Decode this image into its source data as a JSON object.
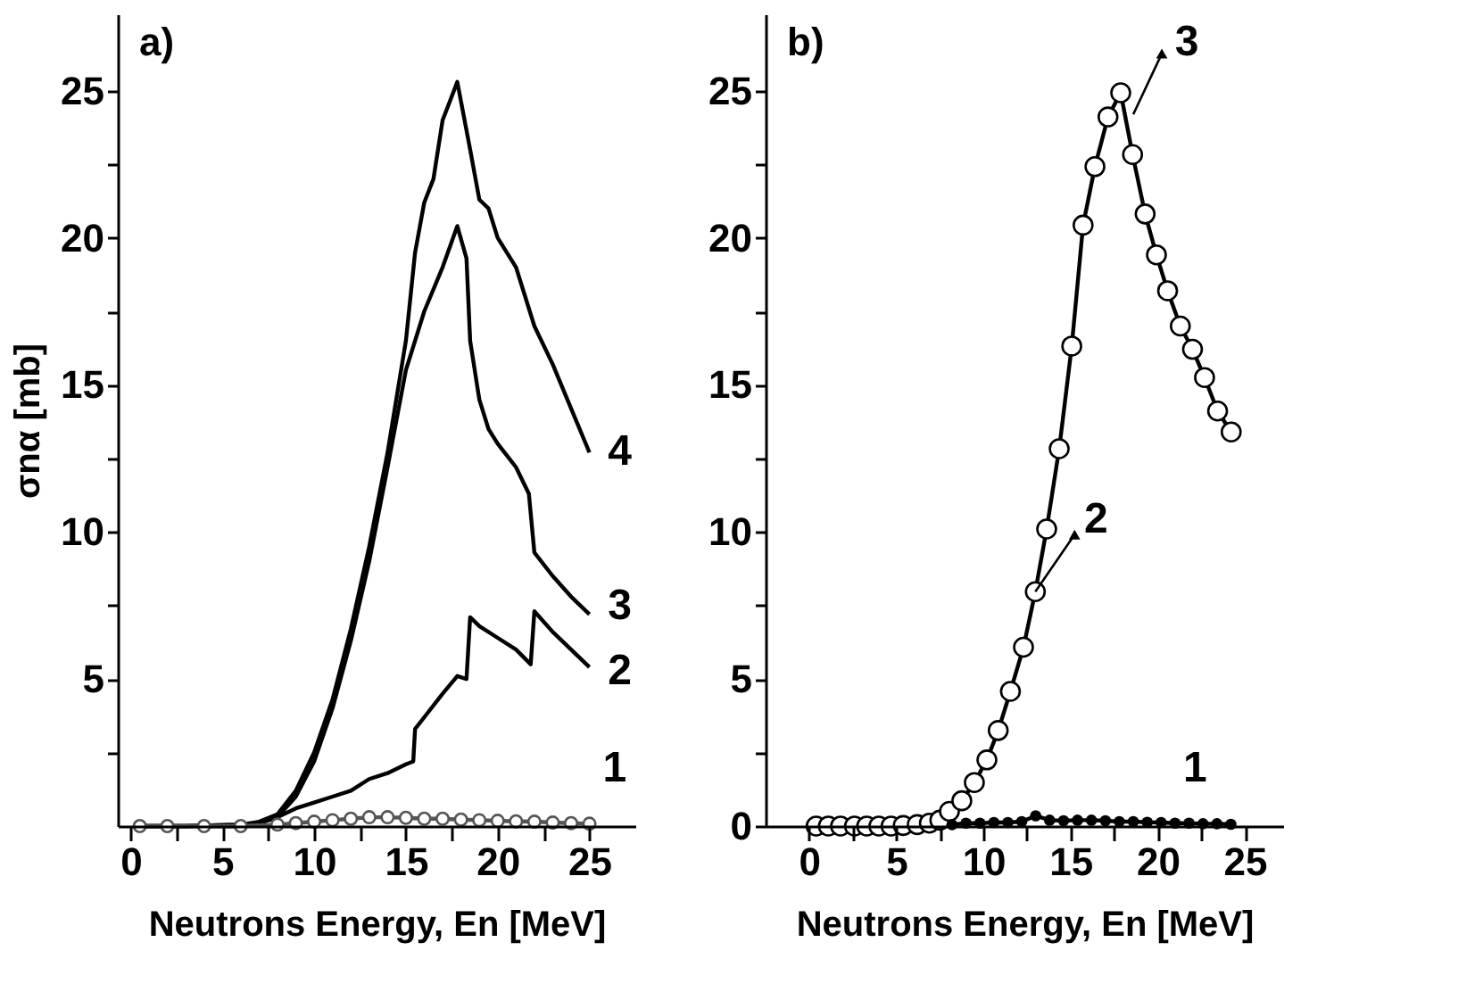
{
  "chart_data": [
    {
      "type": "line",
      "title": "a)",
      "xlabel": "Neutrons Energy, En [MeV]",
      "ylabel": "σnα [mb]",
      "xlim": [
        -0.7,
        27.5
      ],
      "xticks": [
        0,
        {
          "value": 2.5,
          "label": null
        },
        5,
        {
          "value": 7.5,
          "label": null
        },
        10,
        {
          "value": 12.5,
          "label": null
        },
        15,
        {
          "value": 17.5,
          "label": null
        },
        20,
        {
          "value": 22.5,
          "label": null
        },
        25
      ],
      "ylim": [
        0,
        27.6
      ],
      "yticks": [
        {
          "value": 2.5,
          "label": null
        },
        5,
        {
          "value": 7.5,
          "label": null
        },
        10,
        {
          "value": 12.5,
          "label": null
        },
        15,
        {
          "value": 17.5,
          "label": null
        },
        20,
        {
          "value": 22.5,
          "label": null
        },
        25
      ],
      "grid": false,
      "line_style": "solid",
      "series": [
        {
          "color": "#000000",
          "marker": "none",
          "x": [
            0.3,
            3,
            6,
            7,
            8,
            9,
            10,
            11,
            12,
            13,
            14,
            15,
            15.5,
            16,
            16.5,
            17,
            17.8,
            18.5,
            19,
            19.5,
            20,
            21,
            22,
            23,
            24,
            25
          ],
          "values": [
            0,
            0,
            0.05,
            0.15,
            0.4,
            1.2,
            2.5,
            4.3,
            6.7,
            9.5,
            12.7,
            16.5,
            19.5,
            21.2,
            22,
            24,
            25.3,
            23,
            21.3,
            21,
            20,
            19,
            17,
            15.7,
            14.2,
            12.7
          ]
        },
        {
          "color": "#000000",
          "marker": "none",
          "x": [
            0.3,
            3,
            6,
            7,
            8,
            9,
            10,
            11,
            12,
            13,
            14,
            15,
            16,
            17,
            17.8,
            18.3,
            18.5,
            19,
            19.5,
            20,
            21,
            21.7,
            22,
            23,
            24,
            25
          ],
          "values": [
            0,
            0,
            0.05,
            0.1,
            0.3,
            1,
            2.2,
            4,
            6.3,
            9,
            12.2,
            15.5,
            17.5,
            19,
            20.4,
            19.3,
            16.5,
            14.5,
            13.5,
            13,
            12.2,
            11.3,
            9.3,
            8.5,
            7.8,
            7.2
          ]
        },
        {
          "color": "#000000",
          "marker": "none",
          "x": [
            0.3,
            3,
            6,
            7,
            8,
            9,
            10,
            11,
            12,
            13,
            14,
            15,
            15.4,
            15.5,
            16,
            17,
            17.8,
            18.3,
            18.5,
            19,
            20,
            21,
            21.8,
            22,
            23,
            24,
            25
          ],
          "values": [
            0,
            0,
            0,
            0.1,
            0.3,
            0.6,
            0.8,
            1,
            1.2,
            1.6,
            1.8,
            2.1,
            2.2,
            3.3,
            3.7,
            4.5,
            5.1,
            5,
            7.1,
            6.8,
            6.4,
            6,
            5.5,
            7.3,
            6.6,
            6,
            5.4
          ]
        },
        {
          "color": "#555555",
          "marker": "circle",
          "x": [
            0.5,
            2,
            4,
            6,
            8,
            9,
            10,
            11,
            12,
            13,
            14,
            15,
            16,
            17,
            18,
            19,
            20,
            21,
            22,
            23,
            24,
            25
          ],
          "values": [
            0,
            0,
            0,
            0,
            0.05,
            0.1,
            0.15,
            0.2,
            0.25,
            0.3,
            0.3,
            0.28,
            0.25,
            0.25,
            0.22,
            0.2,
            0.18,
            0.16,
            0.15,
            0.12,
            0.1,
            0.08
          ]
        }
      ],
      "annotations": [
        "4",
        "3",
        "2",
        "1"
      ]
    },
    {
      "type": "line",
      "title": "b)",
      "xlabel": "Neutrons Energy, En [MeV]",
      "xlim": [
        -2.5,
        27.2
      ],
      "xticks": [
        0,
        {
          "value": 2.5,
          "label": null
        },
        5,
        {
          "value": 7.5,
          "label": null
        },
        10,
        {
          "value": 12.5,
          "label": null
        },
        15,
        {
          "value": 17.5,
          "label": null
        },
        20,
        {
          "value": 22.5,
          "label": null
        },
        25
      ],
      "ylim": [
        0,
        27.6
      ],
      "yticks": [
        0,
        {
          "value": 2.5,
          "label": null
        },
        5,
        {
          "value": 7.5,
          "label": null
        },
        10,
        {
          "value": 12.5,
          "label": null
        },
        15,
        {
          "value": 17.5,
          "label": null
        },
        20,
        {
          "value": 22.5,
          "label": null
        },
        25
      ],
      "grid": false,
      "line_style": "solid",
      "series": [
        {
          "color": "#000000",
          "marker": "circle",
          "x": [
            0.4,
            1.1,
            1.8,
            2.6,
            3.3,
            4.0,
            4.7,
            5.4,
            6.2,
            6.9,
            7.5,
            8.05,
            8.76,
            9.48,
            10.2,
            10.85,
            11.55,
            12.3,
            12.98,
            13.63,
            14.35,
            15.07,
            15.72,
            16.4,
            17.15,
            17.88,
            18.56,
            19.28,
            19.93,
            20.57,
            21.3,
            22.0,
            22.69,
            23.44,
            24.22
          ],
          "values": [
            0,
            0,
            0,
            0,
            0,
            0,
            0,
            0.02,
            0.05,
            0.1,
            0.2,
            0.5,
            0.86,
            1.48,
            2.25,
            3.25,
            4.58,
            6.08,
            7.97,
            10.1,
            12.83,
            16.32,
            20.43,
            22.42,
            24.11,
            24.93,
            22.83,
            20.81,
            19.42,
            18.2,
            17.0,
            16.21,
            15.25,
            14.11,
            13.4
          ]
        },
        {
          "color": "#000000",
          "marker": "circle",
          "x": [
            8.2,
            9,
            9.8,
            10.6,
            11.4,
            12.2,
            13,
            13.8,
            14.6,
            15.4,
            16.2,
            17,
            17.8,
            18.6,
            19.4,
            20.2,
            21,
            21.8,
            22.6,
            23.4,
            24.2
          ],
          "values": [
            0.05,
            0.1,
            0.1,
            0.12,
            0.12,
            0.15,
            0.35,
            0.2,
            0.18,
            0.2,
            0.2,
            0.18,
            0.15,
            0.15,
            0.13,
            0.12,
            0.1,
            0.1,
            0.08,
            0.08,
            0.06
          ]
        }
      ],
      "annotations": [
        "1",
        {
          "text": "2",
          "x": 12.98,
          "y": 7.97
        },
        {
          "text": "3",
          "x": 18.6,
          "y": 24.2
        }
      ]
    }
  ]
}
